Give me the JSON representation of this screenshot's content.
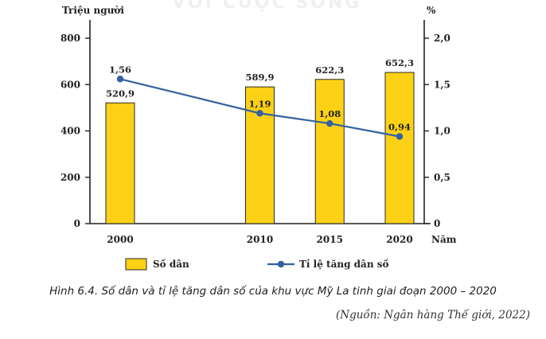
{
  "watermark": "VỚI CUỘC SỐNG",
  "caption": "Hình 6.4. Số dân và tỉ lệ tăng dân số của khu vực Mỹ La tinh giai đoạn 2000 – 2020",
  "source": "(Nguồn: Ngân hàng Thế giới, 2022)",
  "colors": {
    "bar_fill": "#fcd116",
    "bar_stroke": "#2a2a2a",
    "line": "#3461a0",
    "marker": "#3461a0",
    "axis": "#222222"
  },
  "chart_data": {
    "type": "bar+line",
    "categories": [
      "2000",
      "2010",
      "2015",
      "2020"
    ],
    "x_positions": [
      2000,
      2010,
      2015,
      2020
    ],
    "xlabel": "Năm",
    "series": [
      {
        "name": "Số dân",
        "kind": "bar",
        "axis": "left",
        "values": [
          520.9,
          589.9,
          622.3,
          652.3
        ],
        "labels": [
          "520,9",
          "589,9",
          "622,3",
          "652,3"
        ]
      },
      {
        "name": "Tỉ lệ tăng dân số",
        "kind": "line",
        "axis": "right",
        "values": [
          1.56,
          1.19,
          1.08,
          0.94
        ],
        "labels": [
          "1,56",
          "1,19",
          "1,08",
          "0,94"
        ]
      }
    ],
    "y_left": {
      "label": "Triệu người",
      "lim": [
        0,
        900
      ],
      "ticks": [
        0,
        200,
        400,
        600,
        800
      ],
      "tick_labels": [
        "0",
        "200",
        "400",
        "600",
        "800"
      ]
    },
    "y_right": {
      "label": "%",
      "lim": [
        0,
        2.25
      ],
      "ticks": [
        0,
        0.5,
        1.0,
        1.5,
        2.0
      ],
      "tick_labels": [
        "0",
        "0,5",
        "1,0",
        "1,5",
        "2,0"
      ]
    },
    "legend_position": "bottom",
    "grid": false
  }
}
